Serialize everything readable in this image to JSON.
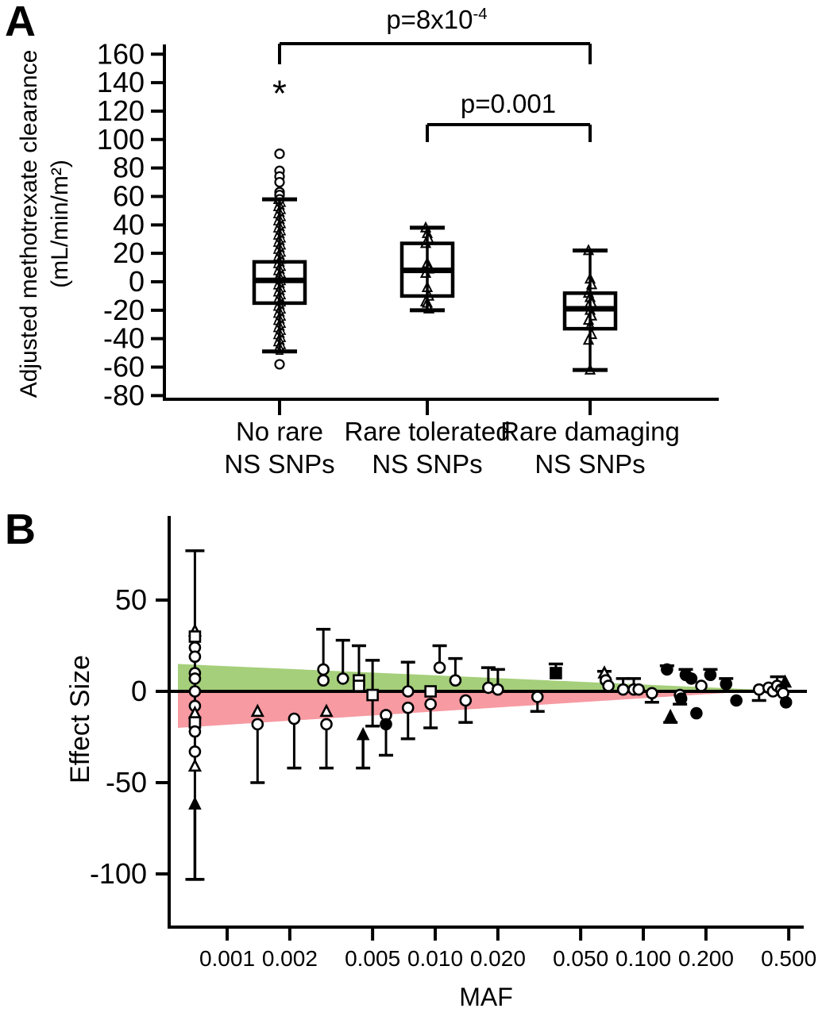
{
  "chart_data": [
    {
      "panel": "A",
      "type": "box",
      "ylabel_line1": "Adjusted methotrexate clearance",
      "ylabel_line2": "(mL/min/m²)",
      "ylim": [
        -80,
        160
      ],
      "yticks": [
        160,
        140,
        120,
        100,
        80,
        60,
        40,
        20,
        0,
        -20,
        -40,
        -60,
        -80
      ],
      "categories": [
        "No rare NS SNPs",
        "Rare tolerated NS SNPs",
        "Rare damaging NS SNPs"
      ],
      "groups": [
        {
          "name_line1": "No rare",
          "name_line2": "NS SNPs",
          "box": {
            "whisker_low": -49,
            "q1": -15,
            "median": 1,
            "q3": 14,
            "whisker_high": 58
          },
          "points_triangles": [
            57,
            56,
            55,
            54,
            53,
            52,
            51,
            50,
            49,
            48,
            47,
            46,
            45,
            44,
            43,
            42,
            41,
            40,
            39,
            38,
            37,
            36,
            35,
            34,
            33,
            32,
            31,
            30,
            29,
            28,
            27,
            26,
            25,
            24,
            23,
            22,
            21,
            20,
            19,
            18,
            17,
            16,
            15,
            14,
            13,
            12,
            11,
            10,
            9,
            8,
            7,
            6,
            5,
            4,
            3,
            2,
            1,
            0,
            -1,
            -2,
            -3,
            -4,
            -5,
            -6,
            -7,
            -8,
            -9,
            -10,
            -11,
            -12,
            -13,
            -14,
            -15,
            -16,
            -17,
            -18,
            -19,
            -20,
            -21,
            -22,
            -23,
            -24,
            -25,
            -26,
            -27,
            -28,
            -29,
            -30,
            -31,
            -32,
            -33,
            -34,
            -35,
            -36,
            -37,
            -38,
            -39,
            -40,
            -41,
            -42,
            -43,
            -44,
            -45,
            -46,
            -47,
            -48,
            -49
          ],
          "points_circles": [
            90,
            78,
            74,
            70,
            63,
            61,
            58,
            -58
          ],
          "outlier_asterisk": 133
        },
        {
          "name_line1": "Rare tolerated",
          "name_line2": "NS SNPs",
          "box": {
            "whisker_low": -20,
            "q1": -10,
            "median": 8,
            "q3": 27,
            "whisker_high": 38
          },
          "points_triangles": [
            38,
            34,
            30,
            27,
            13,
            9,
            6,
            -4,
            -10,
            -14,
            -15,
            -19
          ]
        },
        {
          "name_line1": "Rare damaging",
          "name_line2": "NS SNPs",
          "box": {
            "whisker_low": -62,
            "q1": -33,
            "median": -19,
            "q3": -8,
            "whisker_high": 22
          },
          "points_triangles": [
            22,
            2,
            -2,
            -8,
            -11,
            -15,
            -17,
            -20,
            -24,
            -27,
            -31,
            -37,
            -41,
            -62
          ]
        }
      ],
      "significance_brackets": [
        {
          "label_base": "p=8x10",
          "label_sup": "-4",
          "group_from": 0,
          "group_to": 2
        },
        {
          "label_base": "p=0.001",
          "label_sup": "",
          "group_from": 1,
          "group_to": 2
        }
      ]
    },
    {
      "panel": "B",
      "type": "scatter",
      "xlabel": "MAF",
      "ylabel": "Effect Size",
      "xscale": "log",
      "xticks": [
        0.001,
        0.002,
        0.005,
        0.01,
        0.02,
        0.05,
        0.1,
        0.2,
        0.5
      ],
      "xtick_labels": [
        "0.001",
        "0.002",
        "0.005",
        "0.010",
        "0.020",
        "0.050",
        "0.100",
        "0.200",
        "0.500"
      ],
      "yticks": [
        50,
        0,
        -50,
        -100
      ],
      "ylim": [
        -115,
        85
      ],
      "zero_line": true,
      "shaded_wedges": [
        {
          "color": "#a5cf7a",
          "maf_start": 0.00058,
          "maf_end": 0.55,
          "value_at_start": 15,
          "value_at_end": 0
        },
        {
          "color": "#f79aa2",
          "maf_start": 0.00058,
          "maf_end": 0.33,
          "value_at_start": -20,
          "value_at_end": 0
        }
      ],
      "points": [
        {
          "m": 0.0007,
          "t": "bar",
          "hi": 77,
          "lo": -103
        },
        {
          "m": 0.0007,
          "t": "arrow",
          "from": -103,
          "to": -58
        },
        {
          "m": 0.0007,
          "v": 33,
          "t": "t"
        },
        {
          "m": 0.0007,
          "v": 30,
          "t": "s"
        },
        {
          "m": 0.0007,
          "v": 24,
          "t": "c"
        },
        {
          "m": 0.0007,
          "v": 19,
          "t": "c"
        },
        {
          "m": 0.0007,
          "v": 10,
          "t": "c"
        },
        {
          "m": 0.0007,
          "v": 7,
          "t": "c"
        },
        {
          "m": 0.0007,
          "v": 0,
          "t": "c"
        },
        {
          "m": 0.0007,
          "v": -8,
          "t": "c"
        },
        {
          "m": 0.0007,
          "v": -12,
          "t": "t"
        },
        {
          "m": 0.0007,
          "v": -17,
          "t": "s"
        },
        {
          "m": 0.0007,
          "v": -22,
          "t": "c"
        },
        {
          "m": 0.0007,
          "v": -33,
          "t": "c"
        },
        {
          "m": 0.0007,
          "v": -41,
          "t": "t"
        },
        {
          "m": 0.0014,
          "v": -11,
          "t": "t"
        },
        {
          "m": 0.0014,
          "v": -18,
          "t": "c",
          "d": -50
        },
        {
          "m": 0.0021,
          "v": -15,
          "t": "c",
          "d": -42
        },
        {
          "m": 0.0029,
          "v": 12,
          "t": "c",
          "u": 34
        },
        {
          "m": 0.0029,
          "v": 6,
          "t": "c"
        },
        {
          "m": 0.003,
          "v": -11,
          "t": "t"
        },
        {
          "m": 0.003,
          "v": -18,
          "t": "c",
          "d": -42
        },
        {
          "m": 0.0036,
          "v": 7,
          "t": "c",
          "u": 28
        },
        {
          "m": 0.0043,
          "v": 6,
          "t": "s",
          "u": 25
        },
        {
          "m": 0.0043,
          "v": 3,
          "t": "s"
        },
        {
          "m": 0.0045,
          "t": "arrow",
          "from": -42,
          "to": -20
        },
        {
          "m": 0.005,
          "v": -2,
          "t": "s",
          "u": 17,
          "d": -19
        },
        {
          "m": 0.0058,
          "v": -13,
          "t": "c"
        },
        {
          "m": 0.0058,
          "v": -18,
          "t": "c",
          "f": 1,
          "d": -35
        },
        {
          "m": 0.0074,
          "v": 0,
          "t": "c",
          "u": 16
        },
        {
          "m": 0.0074,
          "v": -9,
          "t": "c",
          "d": -26
        },
        {
          "m": 0.0095,
          "v": 0,
          "t": "s"
        },
        {
          "m": 0.0095,
          "v": -7,
          "t": "c",
          "d": -20
        },
        {
          "m": 0.0105,
          "v": 13,
          "t": "c",
          "u": 25
        },
        {
          "m": 0.0125,
          "v": 6,
          "t": "c",
          "u": 18
        },
        {
          "m": 0.014,
          "v": -5,
          "t": "c",
          "d": -17
        },
        {
          "m": 0.018,
          "v": 2,
          "t": "c",
          "u": 13
        },
        {
          "m": 0.02,
          "v": 1,
          "t": "c",
          "u": 12
        },
        {
          "m": 0.031,
          "v": -3,
          "t": "c",
          "d": -11
        },
        {
          "m": 0.038,
          "v": 10,
          "t": "s",
          "f": 1,
          "u": 15
        },
        {
          "m": 0.065,
          "v": 10,
          "t": "t",
          "u": 11
        },
        {
          "m": 0.066,
          "v": 6,
          "t": "c"
        },
        {
          "m": 0.068,
          "v": 3,
          "t": "c"
        },
        {
          "m": 0.08,
          "v": 1,
          "t": "c",
          "u": 7
        },
        {
          "m": 0.09,
          "v": 1,
          "t": "c",
          "u": 7
        },
        {
          "m": 0.095,
          "v": 1,
          "t": "c"
        },
        {
          "m": 0.11,
          "v": -1,
          "t": "c",
          "d": -6
        },
        {
          "m": 0.13,
          "v": 12,
          "t": "c",
          "f": 1,
          "u": 14
        },
        {
          "m": 0.135,
          "t": "arrow",
          "from": -17,
          "to": -10
        },
        {
          "m": 0.15,
          "v": -2,
          "t": "c",
          "d": -7
        },
        {
          "m": 0.152,
          "v": -4,
          "t": "c",
          "f": 1
        },
        {
          "m": 0.16,
          "v": 9,
          "t": "c",
          "f": 1,
          "u": 12
        },
        {
          "m": 0.17,
          "v": 7,
          "t": "c",
          "f": 1
        },
        {
          "m": 0.18,
          "v": -12,
          "t": "c",
          "f": 1
        },
        {
          "m": 0.19,
          "v": 3,
          "t": "c"
        },
        {
          "m": 0.21,
          "v": 9,
          "t": "c",
          "f": 1,
          "u": 12
        },
        {
          "m": 0.25,
          "v": 4,
          "t": "c",
          "f": 1,
          "u": 7
        },
        {
          "m": 0.28,
          "v": -5,
          "t": "c",
          "f": 1
        },
        {
          "m": 0.36,
          "v": 1,
          "t": "c",
          "d": -5
        },
        {
          "m": 0.4,
          "v": 2,
          "t": "c"
        },
        {
          "m": 0.42,
          "v": 0,
          "t": "c"
        },
        {
          "m": 0.44,
          "v": 3,
          "t": "c",
          "u": 8
        },
        {
          "m": 0.46,
          "v": 1,
          "t": "c"
        },
        {
          "m": 0.47,
          "v": -1,
          "t": "c"
        },
        {
          "m": 0.48,
          "v": 5,
          "t": "t",
          "f": 1
        },
        {
          "m": 0.485,
          "v": -6,
          "t": "c",
          "f": 1
        }
      ]
    }
  ]
}
